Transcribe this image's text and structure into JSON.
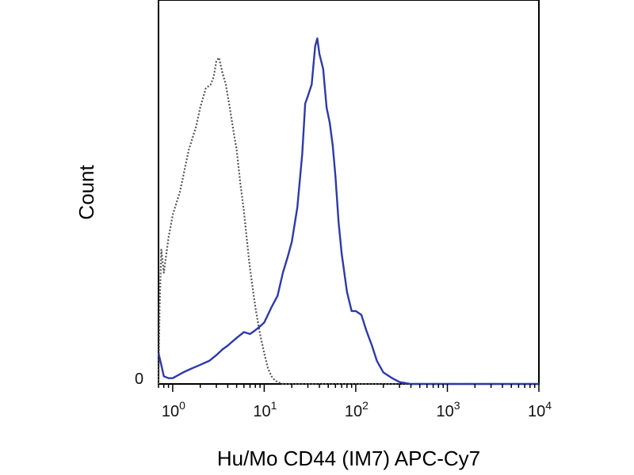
{
  "chart_data": {
    "type": "line",
    "xlabel": "Hu/Mo CD44 (IM7) APC-Cy7",
    "ylabel": "Count",
    "x_scale": "log",
    "xlim": [
      0.7,
      10000
    ],
    "ylim": [
      0,
      100
    ],
    "y_tick_labels": [
      "0"
    ],
    "x_tick_labels": [
      {
        "base": "10",
        "exp": "0"
      },
      {
        "base": "10",
        "exp": "1"
      },
      {
        "base": "10",
        "exp": "2"
      },
      {
        "base": "10",
        "exp": "3"
      },
      {
        "base": "10",
        "exp": "4"
      }
    ],
    "grid": false,
    "series": [
      {
        "style": "dotted",
        "color": "#555555",
        "x": [
          0.7,
          0.72,
          0.75,
          0.8,
          0.9,
          1.0,
          1.2,
          1.5,
          1.8,
          2.0,
          2.3,
          2.6,
          2.8,
          3.0,
          3.2,
          3.5,
          3.8,
          4.2,
          4.6,
          5.0,
          5.5,
          6.0,
          6.5,
          7.0,
          8.0,
          9.0,
          10.0,
          11.0,
          12.0,
          13.0,
          14.0,
          16.0,
          20.0,
          30.0,
          100.0,
          1000.0,
          10000.0
        ],
        "y": [
          0,
          20,
          35,
          29,
          38,
          44,
          50,
          61,
          67,
          72,
          77,
          78,
          80,
          84,
          85,
          81,
          78,
          72,
          66,
          61,
          52,
          45,
          37,
          30,
          20,
          13,
          8,
          4,
          2,
          1,
          0.5,
          0,
          0,
          0,
          0,
          0,
          0
        ]
      },
      {
        "style": "solid",
        "color": "#2e3aa8",
        "x": [
          0.7,
          0.75,
          0.8,
          0.9,
          1.0,
          1.3,
          1.6,
          2.0,
          2.5,
          3.0,
          3.5,
          4.0,
          5.0,
          6.0,
          7.0,
          8.0,
          9.0,
          10.0,
          12.0,
          14.0,
          16.0,
          18.0,
          20.0,
          23.0,
          26.0,
          28.0,
          30.0,
          33.0,
          36.0,
          38.0,
          40.0,
          44.0,
          48.0,
          52.0,
          56.0,
          60.0,
          65.0,
          70.0,
          80.0,
          90.0,
          100.0,
          115.0,
          130.0,
          150.0,
          170.0,
          200.0,
          250.0,
          300.0,
          400.0,
          600.0,
          1000.0,
          10000.0
        ],
        "y": [
          8,
          5,
          2,
          1.5,
          1.5,
          3,
          4,
          5,
          6,
          7.5,
          9,
          10,
          12,
          13.5,
          13,
          14,
          15,
          16,
          20,
          23,
          29,
          33,
          37,
          46,
          60,
          73,
          75,
          78,
          88,
          90,
          86,
          82,
          72,
          68,
          62,
          54,
          42,
          34,
          24,
          19,
          19,
          18,
          14,
          10,
          6,
          3,
          1.5,
          0.5,
          0,
          0,
          0,
          0
        ]
      }
    ]
  }
}
